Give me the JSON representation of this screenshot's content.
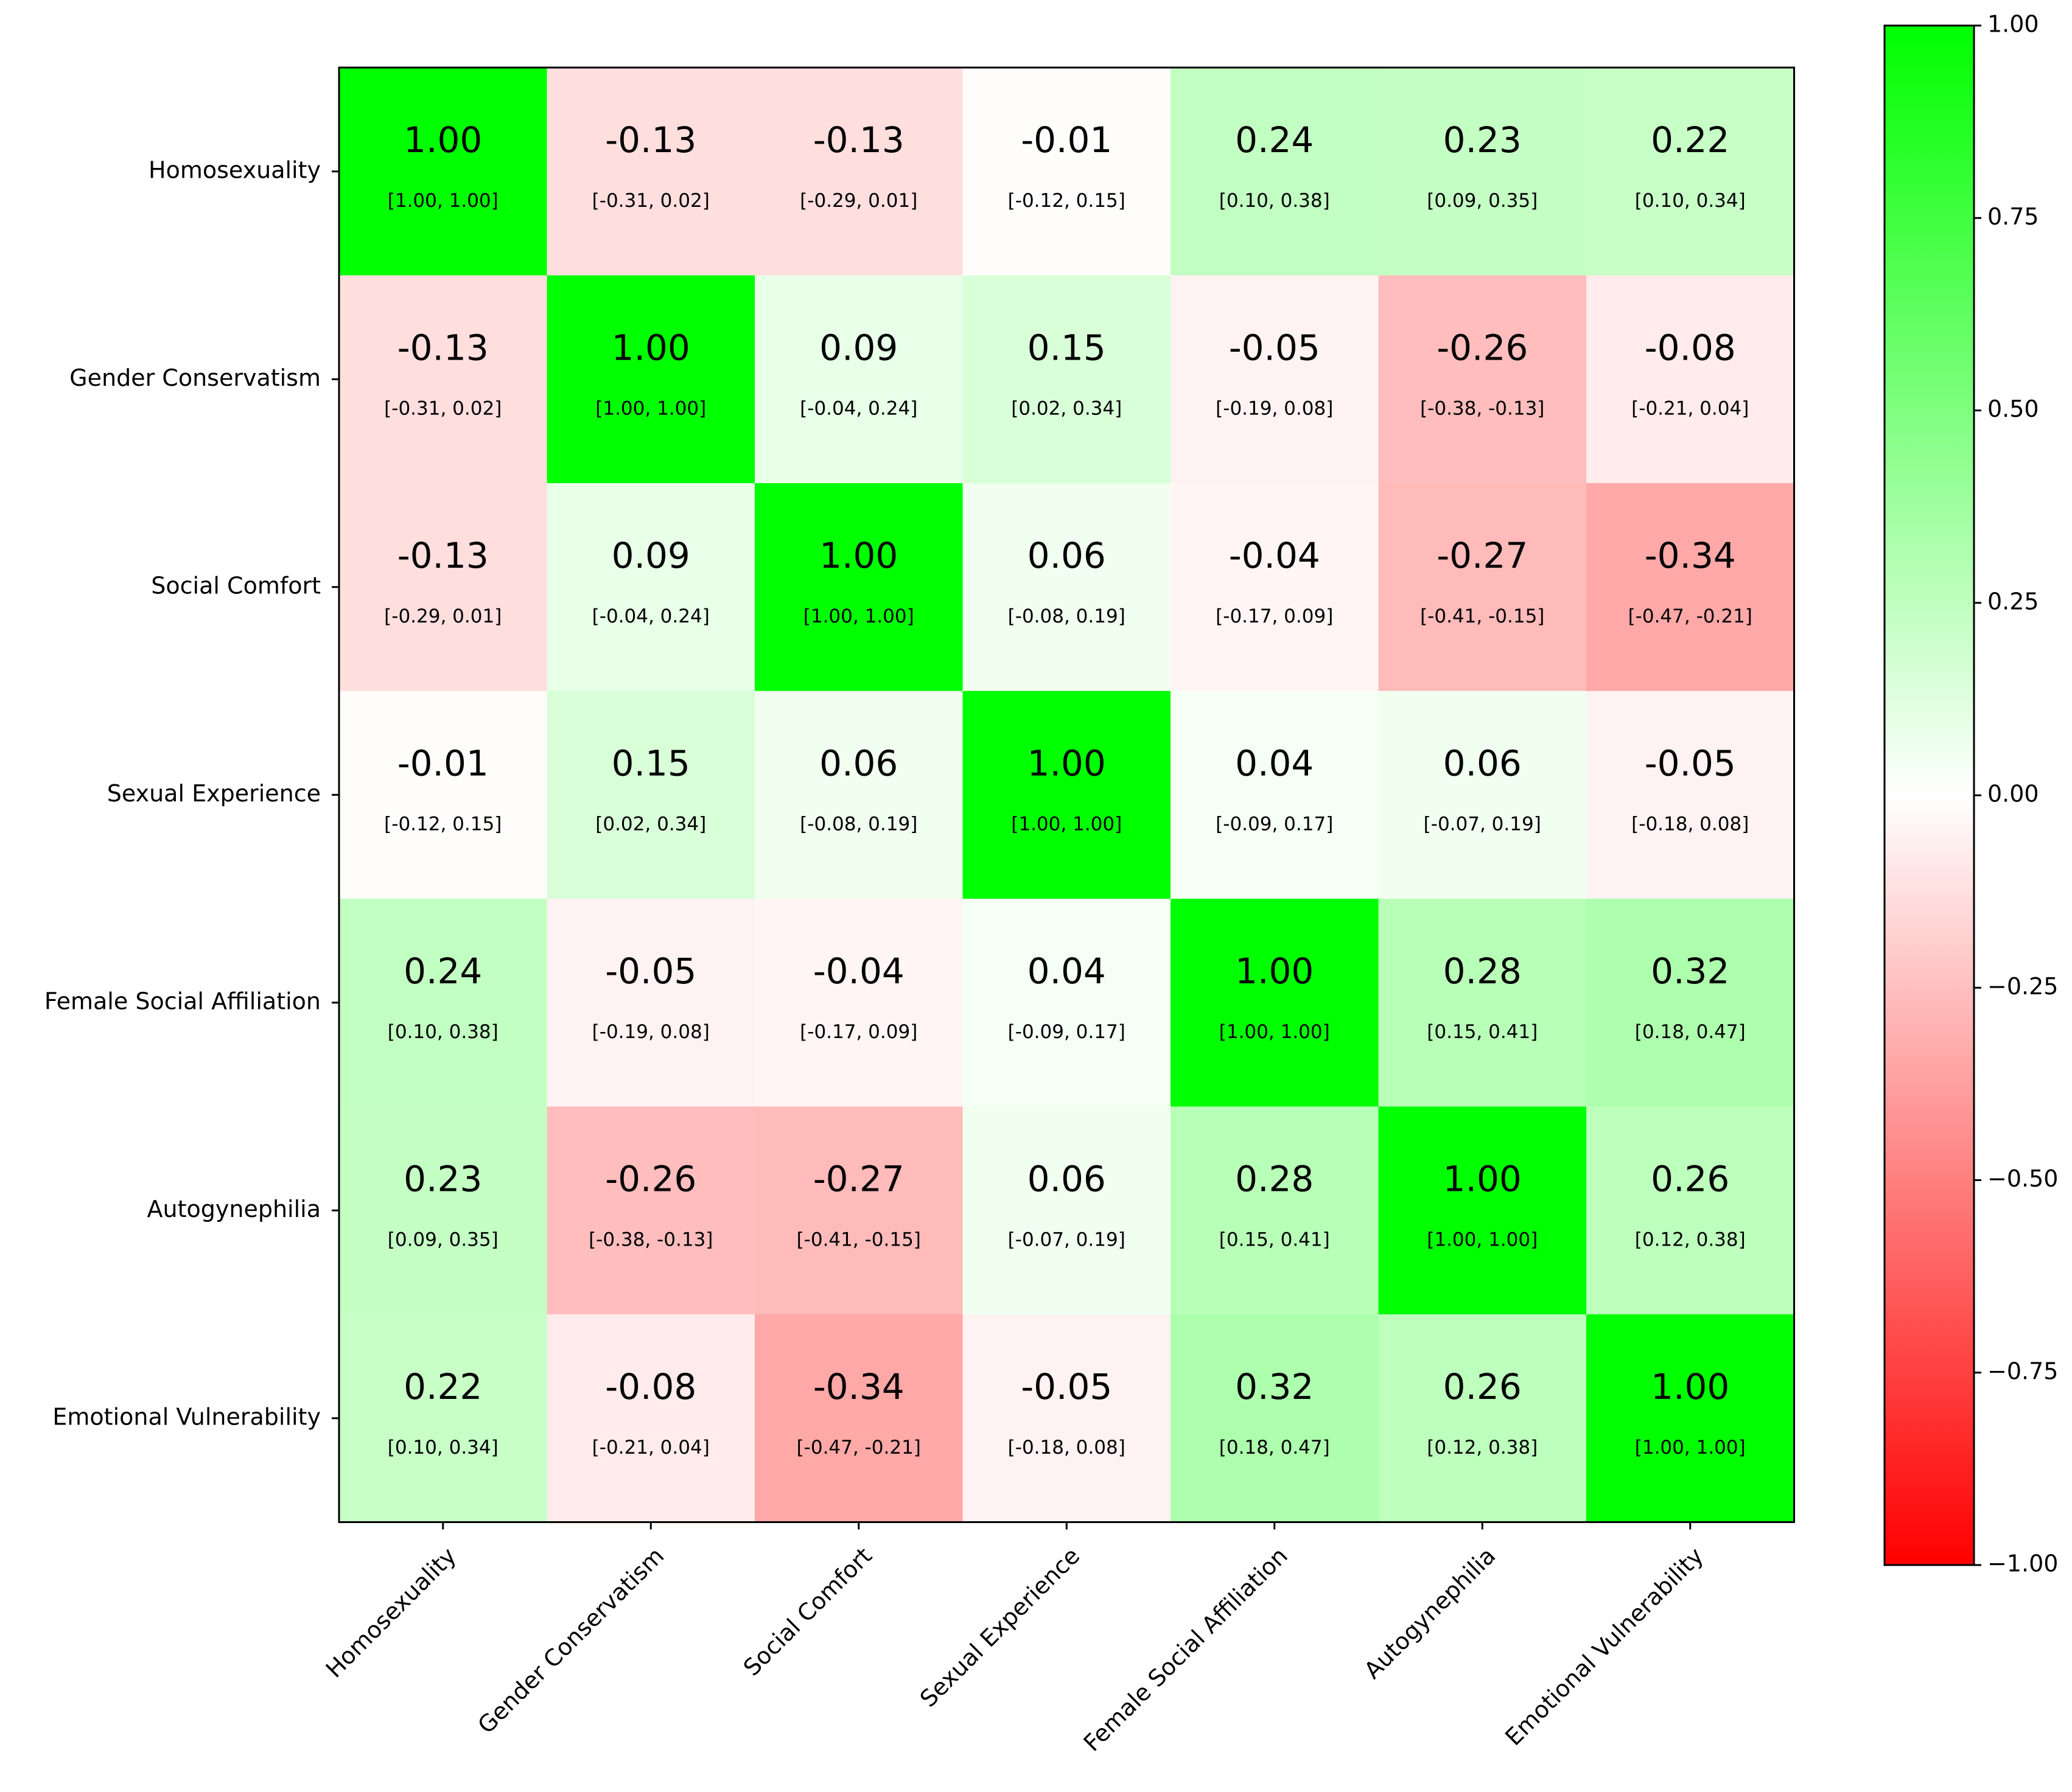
{
  "chart_data": {
    "type": "heatmap",
    "title": "",
    "xlabel": "",
    "ylabel": "",
    "variables": [
      "Homosexuality",
      "Gender Conservatism",
      "Social Comfort",
      "Sexual Experience",
      "Female Social Affiliation",
      "Autogynephilia",
      "Emotional Vulnerability"
    ],
    "values": [
      [
        1.0,
        -0.13,
        -0.13,
        -0.01,
        0.24,
        0.23,
        0.22
      ],
      [
        -0.13,
        1.0,
        0.09,
        0.15,
        -0.05,
        -0.26,
        -0.08
      ],
      [
        -0.13,
        0.09,
        1.0,
        0.06,
        -0.04,
        -0.27,
        -0.34
      ],
      [
        -0.01,
        0.15,
        0.06,
        1.0,
        0.04,
        0.06,
        -0.05
      ],
      [
        0.24,
        -0.05,
        -0.04,
        0.04,
        1.0,
        0.28,
        0.32
      ],
      [
        0.23,
        -0.26,
        -0.27,
        0.06,
        0.28,
        1.0,
        0.26
      ],
      [
        0.22,
        -0.08,
        -0.34,
        -0.05,
        0.32,
        0.26,
        1.0
      ]
    ],
    "value_labels": [
      [
        "1.00",
        "-0.13",
        "-0.13",
        "-0.01",
        "0.24",
        "0.23",
        "0.22"
      ],
      [
        "-0.13",
        "1.00",
        "0.09",
        "0.15",
        "-0.05",
        "-0.26",
        "-0.08"
      ],
      [
        "-0.13",
        "0.09",
        "1.00",
        "0.06",
        "-0.04",
        "-0.27",
        "-0.34"
      ],
      [
        "-0.01",
        "0.15",
        "0.06",
        "1.00",
        "0.04",
        "0.06",
        "-0.05"
      ],
      [
        "0.24",
        "-0.05",
        "-0.04",
        "0.04",
        "1.00",
        "0.28",
        "0.32"
      ],
      [
        "0.23",
        "-0.26",
        "-0.27",
        "0.06",
        "0.28",
        "1.00",
        "0.26"
      ],
      [
        "0.22",
        "-0.08",
        "-0.34",
        "-0.05",
        "0.32",
        "0.26",
        "1.00"
      ]
    ],
    "ci_labels": [
      [
        "[1.00, 1.00]",
        "[-0.31, 0.02]",
        "[-0.29, 0.01]",
        "[-0.12, 0.15]",
        "[0.10, 0.38]",
        "[0.09, 0.35]",
        "[0.10, 0.34]"
      ],
      [
        "[-0.31, 0.02]",
        "[1.00, 1.00]",
        "[-0.04, 0.24]",
        "[0.02, 0.34]",
        "[-0.19, 0.08]",
        "[-0.38, -0.13]",
        "[-0.21, 0.04]"
      ],
      [
        "[-0.29, 0.01]",
        "[-0.04, 0.24]",
        "[1.00, 1.00]",
        "[-0.08, 0.19]",
        "[-0.17, 0.09]",
        "[-0.41, -0.15]",
        "[-0.47, -0.21]"
      ],
      [
        "[-0.12, 0.15]",
        "[0.02, 0.34]",
        "[-0.08, 0.19]",
        "[1.00, 1.00]",
        "[-0.09, 0.17]",
        "[-0.07, 0.19]",
        "[-0.18, 0.08]"
      ],
      [
        "[0.10, 0.38]",
        "[-0.19, 0.08]",
        "[-0.17, 0.09]",
        "[-0.09, 0.17]",
        "[1.00, 1.00]",
        "[0.15, 0.41]",
        "[0.18, 0.47]"
      ],
      [
        "[0.09, 0.35]",
        "[-0.38, -0.13]",
        "[-0.41, -0.15]",
        "[-0.07, 0.19]",
        "[0.15, 0.41]",
        "[1.00, 1.00]",
        "[0.12, 0.38]"
      ],
      [
        "[0.10, 0.34]",
        "[-0.21, 0.04]",
        "[-0.47, -0.21]",
        "[-0.18, 0.08]",
        "[0.18, 0.47]",
        "[0.12, 0.38]",
        "[1.00, 1.00]"
      ]
    ],
    "colorbar": {
      "vmin": -1.0,
      "vmax": 1.0,
      "ticks": [
        1.0,
        0.75,
        0.5,
        0.25,
        0.0,
        -0.25,
        -0.5,
        -0.75,
        -1.0
      ],
      "tick_labels": [
        "1.00",
        "0.75",
        "0.50",
        "0.25",
        "0.00",
        "−0.25",
        "−0.50",
        "−0.75",
        "−1.00"
      ],
      "colors": {
        "low": "#ff0000",
        "mid": "#ffffff",
        "high": "#00ff00"
      }
    },
    "legend": "colorbar-right",
    "grid": false
  }
}
